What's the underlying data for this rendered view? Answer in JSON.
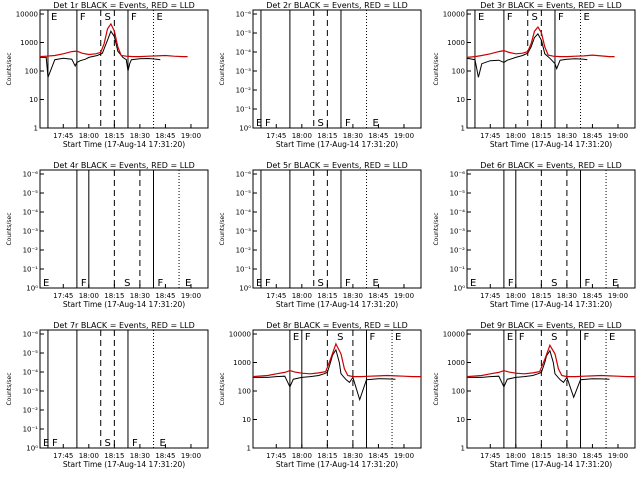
{
  "panel_layout": [
    {
      "col": 0,
      "row": 0
    },
    {
      "col": 1,
      "row": 0
    },
    {
      "col": 2,
      "row": 0
    },
    {
      "col": 0,
      "row": 1
    },
    {
      "col": 1,
      "row": 1
    },
    {
      "col": 2,
      "row": 1
    },
    {
      "col": 0,
      "row": 2
    },
    {
      "col": 1,
      "row": 2
    },
    {
      "col": 2,
      "row": 2
    }
  ],
  "chart_data": [
    {
      "type": "line",
      "title": "Det 1r BLACK = Events, RED = LLD",
      "xlabel": "Start Time (17-Aug-14 17:31:20)",
      "ylabel": "Counts/sec",
      "y_scale": "log",
      "ylim": [
        1,
        10000
      ],
      "y_tick_labels": [
        "1",
        "10",
        "100",
        "1000",
        "10000"
      ],
      "x_tick_labels": [
        "17:45",
        "18:00",
        "18:15",
        "18:30",
        "18:45",
        "19:00"
      ],
      "lines": [
        {
          "style": "solid",
          "x": "17:36"
        },
        {
          "style": "solid",
          "x": "17:53"
        },
        {
          "style": "dash",
          "x": "18:07"
        },
        {
          "style": "dash",
          "x": "18:15"
        },
        {
          "style": "solid",
          "x": "18:23"
        },
        {
          "style": "dotted",
          "x": "18:38"
        }
      ],
      "letters": [
        "E",
        "F",
        "S",
        "F",
        "E"
      ],
      "has_curves": true,
      "series": [
        {
          "name": "Events",
          "color": "#000000",
          "x": [
            "17:31",
            "17:35",
            "17:36",
            "17:40",
            "17:45",
            "17:50",
            "17:52",
            "17:53",
            "17:55",
            "17:58",
            "18:00",
            "18:02",
            "18:05",
            "18:08",
            "18:09",
            "18:11",
            "18:13",
            "18:15",
            "18:17",
            "18:20",
            "18:22",
            "18:23",
            "18:24",
            "18:25",
            "18:30",
            "18:35",
            "18:40",
            "18:42"
          ],
          "y": [
            300,
            300,
            60,
            250,
            280,
            260,
            150,
            200,
            230,
            260,
            300,
            320,
            350,
            420,
            600,
            1200,
            2500,
            1600,
            500,
            300,
            250,
            100,
            180,
            250,
            270,
            275,
            260,
            250
          ]
        },
        {
          "name": "LLD",
          "color": "#cc0000",
          "x": [
            "17:31",
            "17:35",
            "17:40",
            "17:45",
            "17:50",
            "17:53",
            "17:56",
            "18:00",
            "18:04",
            "18:07",
            "18:09",
            "18:11",
            "18:13",
            "18:15",
            "18:17",
            "18:19",
            "18:22",
            "18:26",
            "18:30",
            "18:35",
            "18:40",
            "18:45",
            "18:50",
            "18:55",
            "18:58"
          ],
          "y": [
            320,
            330,
            350,
            400,
            480,
            500,
            420,
            380,
            400,
            450,
            900,
            3000,
            4500,
            2500,
            700,
            350,
            330,
            320,
            320,
            330,
            340,
            350,
            330,
            320,
            320
          ]
        }
      ]
    },
    {
      "type": "line",
      "title": "Det 2r BLACK = Events, RED = LLD",
      "xlabel": "Start Time (17-Aug-14 17:31:20)",
      "ylabel": "Counts/sec",
      "y_scale": "log",
      "y_tick_labels": [
        "10⁰",
        "10⁻¹",
        "10⁻²",
        "10⁻³",
        "10⁻⁴",
        "10⁻⁵",
        "10⁻⁶"
      ],
      "x_tick_labels": [
        "17:45",
        "18:00",
        "18:15",
        "18:30",
        "18:45",
        "19:00"
      ],
      "lines": [
        {
          "style": "solid",
          "x": "17:36"
        },
        {
          "style": "solid",
          "x": "17:53"
        },
        {
          "style": "dash",
          "x": "18:07"
        },
        {
          "style": "dash",
          "x": "18:15"
        },
        {
          "style": "solid",
          "x": "18:23"
        },
        {
          "style": "dotted",
          "x": "18:38"
        }
      ],
      "letters": [
        "E",
        "F",
        "S",
        "F",
        "E"
      ],
      "has_curves": false
    },
    {
      "type": "line",
      "title": "Det 3r BLACK = Events, RED = LLD",
      "xlabel": "Start Time (17-Aug-14 17:31:20)",
      "ylabel": "Counts/sec",
      "y_scale": "log",
      "ylim": [
        1,
        10000
      ],
      "y_tick_labels": [
        "1",
        "10",
        "100",
        "1000",
        "10000"
      ],
      "x_tick_labels": [
        "17:45",
        "18:00",
        "18:15",
        "18:30",
        "18:45",
        "19:00"
      ],
      "lines": [
        {
          "style": "solid",
          "x": "17:36"
        },
        {
          "style": "solid",
          "x": "17:53"
        },
        {
          "style": "dash",
          "x": "18:07"
        },
        {
          "style": "dash",
          "x": "18:15"
        },
        {
          "style": "solid",
          "x": "18:23"
        },
        {
          "style": "dotted",
          "x": "18:38"
        }
      ],
      "letters": [
        "E",
        "F",
        "S",
        "F",
        "E"
      ],
      "has_curves": true,
      "series": [
        {
          "name": "Events",
          "color": "#000000",
          "x": [
            "17:31",
            "17:36",
            "17:38",
            "17:40",
            "17:45",
            "17:50",
            "17:53",
            "17:55",
            "18:00",
            "18:04",
            "18:07",
            "18:09",
            "18:11",
            "18:13",
            "18:15",
            "18:17",
            "18:20",
            "18:23",
            "18:24",
            "18:26",
            "18:30",
            "18:35",
            "18:40",
            "18:42"
          ],
          "y": [
            280,
            250,
            60,
            180,
            230,
            240,
            200,
            240,
            300,
            350,
            420,
            700,
            1500,
            2000,
            1200,
            400,
            280,
            180,
            120,
            240,
            260,
            270,
            260,
            250
          ]
        },
        {
          "name": "LLD",
          "color": "#cc0000",
          "x": [
            "17:31",
            "17:36",
            "17:40",
            "17:45",
            "17:50",
            "17:53",
            "17:56",
            "18:00",
            "18:04",
            "18:07",
            "18:09",
            "18:11",
            "18:13",
            "18:15",
            "18:17",
            "18:19",
            "18:22",
            "18:26",
            "18:30",
            "18:35",
            "18:40",
            "18:45",
            "18:50",
            "18:55",
            "18:58"
          ],
          "y": [
            300,
            320,
            350,
            400,
            480,
            520,
            450,
            400,
            420,
            480,
            900,
            2500,
            3500,
            2200,
            700,
            360,
            330,
            320,
            320,
            330,
            340,
            360,
            340,
            320,
            320
          ]
        }
      ]
    },
    {
      "type": "line",
      "title": "Det 4r BLACK = Events, RED = LLD",
      "xlabel": "Start Time (17-Aug-14 17:31:20)",
      "ylabel": "Counts/sec",
      "y_scale": "log",
      "y_tick_labels": [
        "10⁰",
        "10⁻¹",
        "10⁻²",
        "10⁻³",
        "10⁻⁴",
        "10⁻⁵",
        "10⁻⁶"
      ],
      "x_tick_labels": [
        "17:45",
        "18:00",
        "18:15",
        "18:30",
        "18:45",
        "19:00"
      ],
      "lines": [
        {
          "style": "solid",
          "x": "17:53"
        },
        {
          "style": "solid",
          "x": "18:00"
        },
        {
          "style": "dash",
          "x": "18:15"
        },
        {
          "style": "dash",
          "x": "18:30"
        },
        {
          "style": "solid",
          "x": "18:38"
        },
        {
          "style": "dotted",
          "x": "18:53"
        }
      ],
      "letters": [
        "E",
        "F",
        "S",
        "F",
        "E"
      ],
      "has_curves": false
    },
    {
      "type": "line",
      "title": "Det 5r BLACK = Events, RED = LLD",
      "xlabel": "Start Time (17-Aug-14 17:31:20)",
      "ylabel": "Counts/sec",
      "y_scale": "log",
      "y_tick_labels": [
        "10⁰",
        "10⁻¹",
        "10⁻²",
        "10⁻³",
        "10⁻⁴",
        "10⁻⁵",
        "10⁻⁶"
      ],
      "x_tick_labels": [
        "17:45",
        "18:00",
        "18:15",
        "18:30",
        "18:45",
        "19:00"
      ],
      "lines": [
        {
          "style": "solid",
          "x": "17:36"
        },
        {
          "style": "solid",
          "x": "17:53"
        },
        {
          "style": "dash",
          "x": "18:07"
        },
        {
          "style": "dash",
          "x": "18:15"
        },
        {
          "style": "solid",
          "x": "18:23"
        },
        {
          "style": "dotted",
          "x": "18:38"
        }
      ],
      "letters": [
        "E",
        "F",
        "S",
        "F",
        "E"
      ],
      "has_curves": false
    },
    {
      "type": "line",
      "title": "Det 6r BLACK = Events, RED = LLD",
      "xlabel": "Start Time (17-Aug-14 17:31:20)",
      "ylabel": "Counts/sec",
      "y_scale": "log",
      "y_tick_labels": [
        "10⁰",
        "10⁻¹",
        "10⁻²",
        "10⁻³",
        "10⁻⁴",
        "10⁻⁵",
        "10⁻⁶"
      ],
      "x_tick_labels": [
        "17:45",
        "18:00",
        "18:15",
        "18:30",
        "18:45",
        "19:00"
      ],
      "lines": [
        {
          "style": "solid",
          "x": "17:53"
        },
        {
          "style": "solid",
          "x": "18:00"
        },
        {
          "style": "dash",
          "x": "18:15"
        },
        {
          "style": "dash",
          "x": "18:30"
        },
        {
          "style": "solid",
          "x": "18:38"
        },
        {
          "style": "dotted",
          "x": "18:53"
        }
      ],
      "letters": [
        "E",
        "F",
        "S",
        "F",
        "E"
      ],
      "has_curves": false
    },
    {
      "type": "line",
      "title": "Det 7r BLACK = Events, RED = LLD",
      "xlabel": "Start Time (17-Aug-14 17:31:20)",
      "ylabel": "Counts/sec",
      "y_scale": "log",
      "y_tick_labels": [
        "10⁰",
        "10⁻¹",
        "10⁻²",
        "10⁻³",
        "10⁻⁴",
        "10⁻⁵",
        "10⁻⁶"
      ],
      "x_tick_labels": [
        "17:45",
        "18:00",
        "18:15",
        "18:30",
        "18:45",
        "19:00"
      ],
      "lines": [
        {
          "style": "solid",
          "x": "17:36"
        },
        {
          "style": "solid",
          "x": "17:53"
        },
        {
          "style": "dash",
          "x": "18:07"
        },
        {
          "style": "dash",
          "x": "18:15"
        },
        {
          "style": "solid",
          "x": "18:23"
        },
        {
          "style": "dotted",
          "x": "18:38"
        }
      ],
      "letters": [
        "E",
        "F",
        "S",
        "F",
        "E"
      ],
      "has_curves": false
    },
    {
      "type": "line",
      "title": "Det 8r BLACK = Events, RED = LLD",
      "xlabel": "Start Time (17-Aug-14 17:31:20)",
      "ylabel": "Counts/sec",
      "y_scale": "log",
      "ylim": [
        1,
        10000
      ],
      "y_tick_labels": [
        "1",
        "10",
        "100",
        "1000",
        "10000"
      ],
      "x_tick_labels": [
        "17:45",
        "18:00",
        "18:15",
        "18:30",
        "18:45",
        "19:00"
      ],
      "lines": [
        {
          "style": "solid",
          "x": "17:53"
        },
        {
          "style": "solid",
          "x": "18:00"
        },
        {
          "style": "dash",
          "x": "18:15"
        },
        {
          "style": "dash",
          "x": "18:30"
        },
        {
          "style": "solid",
          "x": "18:38"
        },
        {
          "style": "dotted",
          "x": "18:53"
        }
      ],
      "letters": [
        "E",
        "F",
        "S",
        "F",
        "E"
      ],
      "has_curves": true,
      "series": [
        {
          "name": "Events",
          "color": "#000000",
          "x": [
            "17:31",
            "17:40",
            "17:45",
            "17:50",
            "17:53",
            "17:55",
            "18:00",
            "18:05",
            "18:10",
            "18:13",
            "18:15",
            "18:17",
            "18:18",
            "18:20",
            "18:22",
            "18:23",
            "18:26",
            "18:28",
            "18:30",
            "18:34",
            "18:38",
            "18:45",
            "18:50",
            "18:55"
          ],
          "y": [
            300,
            300,
            320,
            330,
            140,
            260,
            300,
            320,
            350,
            400,
            450,
            1100,
            1800,
            2800,
            1000,
            400,
            250,
            200,
            300,
            50,
            250,
            270,
            265,
            260
          ]
        },
        {
          "name": "LLD",
          "color": "#cc0000",
          "x": [
            "17:31",
            "17:40",
            "17:45",
            "17:50",
            "17:53",
            "17:56",
            "18:00",
            "18:05",
            "18:10",
            "18:14",
            "18:17",
            "18:20",
            "18:23",
            "18:25",
            "18:27",
            "18:30",
            "18:35",
            "18:40",
            "18:45",
            "18:50",
            "18:55",
            "19:00",
            "19:05",
            "19:10"
          ],
          "y": [
            320,
            350,
            400,
            450,
            520,
            460,
            420,
            400,
            430,
            480,
            1400,
            4500,
            2000,
            600,
            350,
            320,
            320,
            330,
            340,
            350,
            340,
            330,
            320,
            320
          ]
        }
      ]
    },
    {
      "type": "line",
      "title": "Det 9r BLACK = Events, RED = LLD",
      "xlabel": "Start Time (17-Aug-14 17:31:20)",
      "ylabel": "Counts/sec",
      "y_scale": "log",
      "ylim": [
        1,
        10000
      ],
      "y_tick_labels": [
        "1",
        "10",
        "100",
        "1000",
        "10000"
      ],
      "x_tick_labels": [
        "17:45",
        "18:00",
        "18:15",
        "18:30",
        "18:45",
        "19:00"
      ],
      "lines": [
        {
          "style": "solid",
          "x": "17:53"
        },
        {
          "style": "solid",
          "x": "18:00"
        },
        {
          "style": "dash",
          "x": "18:15"
        },
        {
          "style": "dash",
          "x": "18:30"
        },
        {
          "style": "solid",
          "x": "18:38"
        },
        {
          "style": "dotted",
          "x": "18:53"
        }
      ],
      "letters": [
        "E",
        "F",
        "S",
        "F",
        "E"
      ],
      "has_curves": true,
      "series": [
        {
          "name": "Events",
          "color": "#000000",
          "x": [
            "17:31",
            "17:40",
            "17:45",
            "17:50",
            "17:53",
            "17:55",
            "18:00",
            "18:05",
            "18:10",
            "18:13",
            "18:15",
            "18:17",
            "18:18",
            "18:20",
            "18:22",
            "18:23",
            "18:26",
            "18:28",
            "18:30",
            "18:34",
            "18:38",
            "18:45",
            "18:50",
            "18:55"
          ],
          "y": [
            300,
            300,
            320,
            330,
            140,
            260,
            300,
            320,
            350,
            400,
            450,
            1000,
            1700,
            2600,
            1000,
            400,
            250,
            200,
            300,
            60,
            250,
            270,
            265,
            260
          ]
        },
        {
          "name": "LLD",
          "color": "#cc0000",
          "x": [
            "17:31",
            "17:40",
            "17:45",
            "17:50",
            "17:53",
            "17:56",
            "18:00",
            "18:05",
            "18:10",
            "18:14",
            "18:17",
            "18:20",
            "18:23",
            "18:25",
            "18:27",
            "18:30",
            "18:35",
            "18:40",
            "18:45",
            "18:50",
            "18:55",
            "19:00",
            "19:05",
            "19:10"
          ],
          "y": [
            320,
            350,
            400,
            450,
            520,
            460,
            420,
            400,
            430,
            480,
            1300,
            4000,
            2000,
            600,
            350,
            320,
            320,
            330,
            340,
            350,
            340,
            330,
            320,
            320
          ]
        }
      ]
    }
  ]
}
